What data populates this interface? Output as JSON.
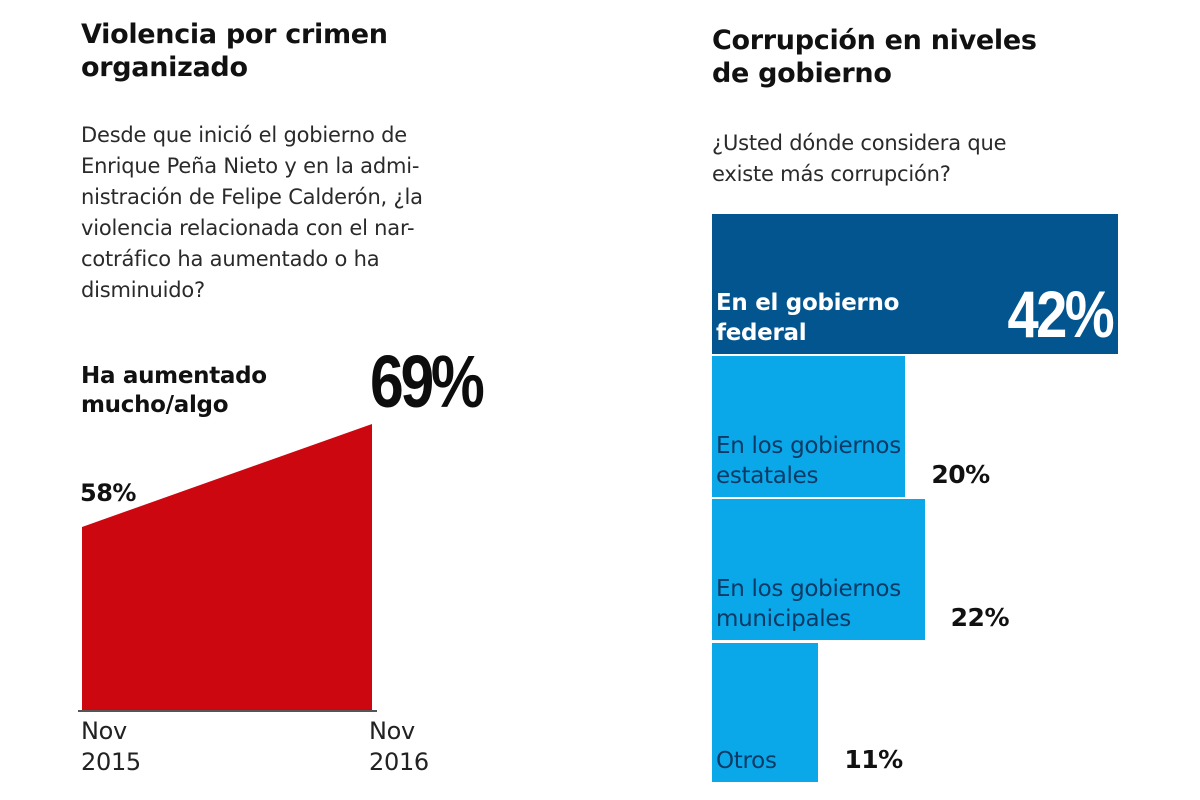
{
  "left_panel": {
    "title": "Violencia por crimen organizado",
    "question": "Desde que inició el gobierno de Enrique Peña Nieto y en la administración de Felipe Calderón, ¿la violencia relacionada con el narcotráfico ha aumentado o ha disminuido?",
    "question_lines": [
      "Desde que inició el gobierno de",
      "Enrique Peña Nieto y en la admi-",
      "nistración de Felipe Calderón, ¿la",
      "violencia relacionada con el nar-",
      "cotráfico ha aumentado o ha",
      "disminuido?"
    ],
    "series_label_lines": [
      "Ha aumentado",
      "mucho/algo"
    ],
    "start_value_label": "58%",
    "end_value_label": "69%",
    "x_ticks": [
      {
        "line1": "Nov",
        "line2": "2015"
      },
      {
        "line1": "Nov",
        "line2": "2016"
      }
    ]
  },
  "right_panel": {
    "title": "Corrupción en niveles de gobierno",
    "title_lines": [
      "Corrupción en niveles",
      "de gobierno"
    ],
    "question": "¿Usted dónde considera que existe más corrupción?",
    "question_lines": [
      "¿Usted dónde considera que",
      "existe más corrupción?"
    ]
  },
  "colors": {
    "area_fill": "#cc0710",
    "baseline": "#555555",
    "bar_dark": "#03558f",
    "bar_light": "#0aa8e8",
    "bar_label_light": "#0b3a66",
    "text": "#111111"
  },
  "chart_data": [
    {
      "type": "area",
      "title": "Violencia por crimen organizado",
      "series": [
        {
          "name": "Ha aumentado mucho/algo",
          "values": [
            58,
            69
          ]
        }
      ],
      "x": [
        "Nov 2015",
        "Nov 2016"
      ],
      "unit": "%",
      "ylim": [
        0,
        69
      ],
      "grid": false
    },
    {
      "type": "bar",
      "orientation": "horizontal",
      "title": "Corrupción en niveles de gobierno",
      "categories": [
        "En el gobierno federal",
        "En los gobiernos estatales",
        "En los gobiernos municipales",
        "Otros"
      ],
      "category_lines": [
        [
          "En el gobierno",
          "federal"
        ],
        [
          "En los gobiernos",
          "estatales"
        ],
        [
          "En los gobiernos",
          "municipales"
        ],
        [
          "Otros"
        ]
      ],
      "values": [
        42,
        20,
        22,
        11
      ],
      "value_labels": [
        "42%",
        "20%",
        "22%",
        "11%"
      ],
      "highlight_index": 0,
      "unit": "%",
      "xlim": [
        0,
        42
      ],
      "grid": false
    }
  ]
}
